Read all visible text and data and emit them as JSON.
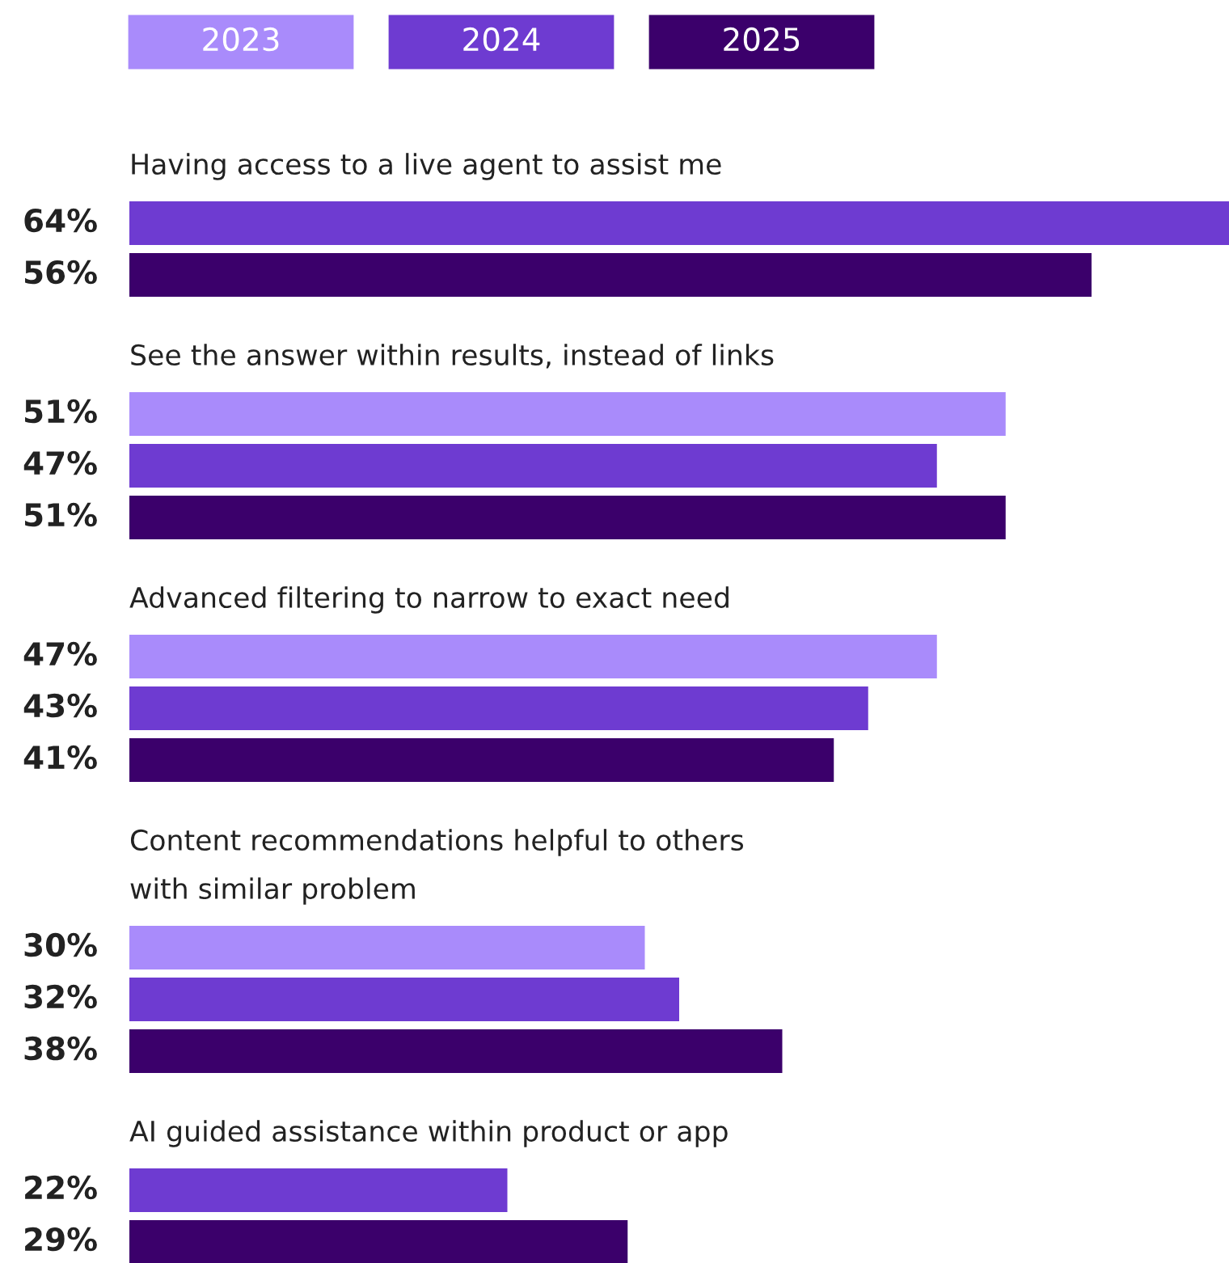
{
  "chart_data": {
    "type": "bar",
    "orientation": "horizontal",
    "legend": "top left",
    "categories": [
      "Having access to a live agent to assist me",
      "See the answer within results, instead of links",
      "Advanced filtering to narrow to exact need",
      "Content recommendations helpful to others\nwith similar problem",
      "AI guided assistance within product or app"
    ],
    "series": [
      {
        "name": "2023",
        "color": "#a98bfb",
        "values": [
          null,
          51,
          47,
          30,
          null
        ],
        "value_labels": [
          null,
          "51%",
          "47%",
          "30%",
          null
        ]
      },
      {
        "name": "2024",
        "color": "#6e3bd1",
        "values": [
          64,
          47,
          43,
          32,
          22
        ],
        "value_labels": [
          "64%",
          "47%",
          "43%",
          "32%",
          "22%"
        ]
      },
      {
        "name": "2025",
        "color": "#3b006b",
        "values": [
          56,
          51,
          41,
          38,
          29
        ],
        "value_labels": [
          "56%",
          "51%",
          "41%",
          "38%",
          "29%"
        ]
      }
    ]
  }
}
